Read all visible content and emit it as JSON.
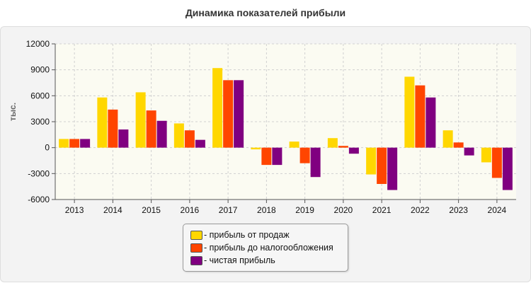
{
  "title": "Динамика показателей прибыли",
  "chart_data": {
    "type": "bar",
    "title": "Динамика показателей прибыли",
    "ylabel": "тыс.",
    "xlabel": "",
    "categories": [
      "2013",
      "2014",
      "2015",
      "2016",
      "2017",
      "2018",
      "2019",
      "2020",
      "2021",
      "2022",
      "2023",
      "2024"
    ],
    "ylim": [
      -6000,
      12000
    ],
    "yticks": [
      12000,
      9000,
      6000,
      3000,
      0,
      -3000,
      -6000
    ],
    "grid": true,
    "legend_position": "bottom-center",
    "series": [
      {
        "name": "- прибыль от продаж",
        "color": "#FFD700",
        "values": [
          1000,
          5800,
          6400,
          2800,
          9200,
          -200,
          700,
          1100,
          -3100,
          8200,
          2000,
          -1700
        ]
      },
      {
        "name": "- прибыль до налогообложения",
        "color": "#FF4500",
        "values": [
          1000,
          4400,
          4300,
          2000,
          7800,
          -2000,
          -1800,
          200,
          -4200,
          7200,
          600,
          -3500
        ]
      },
      {
        "name": "- чистая прибыль",
        "color": "#800080",
        "values": [
          1000,
          2100,
          3100,
          900,
          7800,
          -2000,
          -3400,
          -700,
          -4900,
          5800,
          -900,
          -4900
        ]
      }
    ]
  }
}
